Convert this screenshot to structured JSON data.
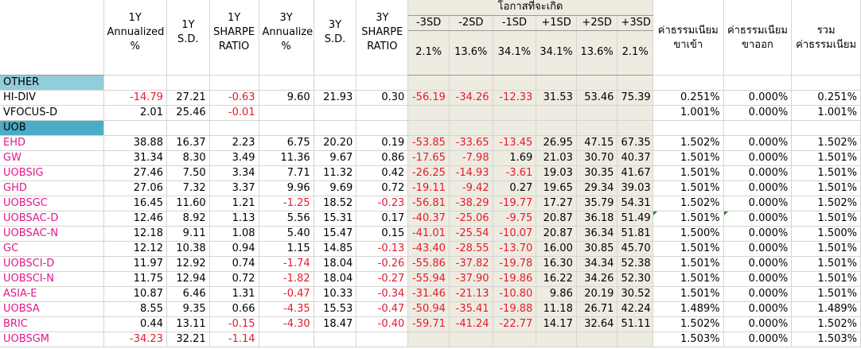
{
  "header": {
    "c1y_ann": [
      "1Y",
      "Annualized",
      "%"
    ],
    "c1y_sd": [
      "1Y",
      "S.D."
    ],
    "c1y_sharpe": [
      "1Y",
      "SHARPE",
      "RATIO"
    ],
    "c3y_ann": [
      "3Y",
      "Annualized",
      "%"
    ],
    "c3y_sd": [
      "3Y",
      "S.D."
    ],
    "c3y_sharpe": [
      "3Y",
      "SHARPE",
      "RATIO"
    ],
    "prob_title": "โอกาสที่จะเกิด",
    "sd_labels": [
      "-3SD",
      "-2SD",
      "-1SD",
      "+1SD",
      "+2SD",
      "+3SD"
    ],
    "sd_probs": [
      "2.1%",
      "13.6%",
      "34.1%",
      "34.1%",
      "13.6%",
      "2.1%"
    ],
    "fee_in": [
      "ค่าธรรมเนียม",
      "ขาเข้า"
    ],
    "fee_out": [
      "ค่าธรรมเนียม",
      "ขาออก"
    ],
    "fee_total": [
      "รวม",
      "ค่าธรรมเนียม"
    ]
  },
  "sections": [
    {
      "name": "OTHER",
      "style": "light",
      "rows": [
        [
          "HI-DIV",
          "-14.79",
          "27.21",
          "-0.63",
          "9.60",
          "21.93",
          "0.30",
          "-56.19",
          "-34.26",
          "-12.33",
          "31.53",
          "53.46",
          "75.39",
          "0.251%",
          "0.000%",
          "0.251%"
        ],
        [
          "VFOCUS-D",
          "2.01",
          "25.46",
          "-0.01",
          "",
          "",
          "",
          "",
          "",
          "",
          "",
          "",
          "",
          "1.001%",
          "0.000%",
          "1.001%"
        ]
      ]
    },
    {
      "name": "UOB",
      "style": "dark",
      "rows": [
        [
          "EHD",
          "38.88",
          "16.37",
          "2.23",
          "6.75",
          "20.20",
          "0.19",
          "-53.85",
          "-33.65",
          "-13.45",
          "26.95",
          "47.15",
          "67.35",
          "1.502%",
          "0.000%",
          "1.502%"
        ],
        [
          "GW",
          "31.34",
          "8.30",
          "3.49",
          "11.36",
          "9.67",
          "0.86",
          "-17.65",
          "-7.98",
          "1.69",
          "21.03",
          "30.70",
          "40.37",
          "1.501%",
          "0.000%",
          "1.501%"
        ],
        [
          "UOBSIG",
          "27.46",
          "7.50",
          "3.34",
          "7.71",
          "11.32",
          "0.42",
          "-26.25",
          "-14.93",
          "-3.61",
          "19.03",
          "30.35",
          "41.67",
          "1.501%",
          "0.000%",
          "1.501%"
        ],
        [
          "GHD",
          "27.06",
          "7.32",
          "3.37",
          "9.96",
          "9.69",
          "0.72",
          "-19.11",
          "-9.42",
          "0.27",
          "19.65",
          "29.34",
          "39.03",
          "1.501%",
          "0.000%",
          "1.501%"
        ],
        [
          "UOBSGC",
          "16.45",
          "11.60",
          "1.21",
          "-1.25",
          "18.52",
          "-0.23",
          "-56.81",
          "-38.29",
          "-19.77",
          "17.27",
          "35.79",
          "54.31",
          "1.502%",
          "0.000%",
          "1.502%"
        ],
        [
          "UOBSAC-D",
          "12.46",
          "8.92",
          "1.13",
          "5.56",
          "15.31",
          "0.17",
          "-40.37",
          "-25.06",
          "-9.75",
          "20.87",
          "36.18",
          "51.49",
          "1.501%",
          "0.000%",
          "1.501%"
        ],
        [
          "UOBSAC-N",
          "12.18",
          "9.11",
          "1.08",
          "5.40",
          "15.47",
          "0.15",
          "-41.01",
          "-25.54",
          "-10.07",
          "20.87",
          "36.34",
          "51.81",
          "1.500%",
          "0.000%",
          "1.500%"
        ],
        [
          "GC",
          "12.12",
          "10.38",
          "0.94",
          "1.15",
          "14.85",
          "-0.13",
          "-43.40",
          "-28.55",
          "-13.70",
          "16.00",
          "30.85",
          "45.70",
          "1.501%",
          "0.000%",
          "1.501%"
        ],
        [
          "UOBSCI-D",
          "11.97",
          "12.92",
          "0.74",
          "-1.74",
          "18.04",
          "-0.26",
          "-55.86",
          "-37.82",
          "-19.78",
          "16.30",
          "34.34",
          "52.38",
          "1.501%",
          "0.000%",
          "1.501%"
        ],
        [
          "UOBSCI-N",
          "11.75",
          "12.94",
          "0.72",
          "-1.82",
          "18.04",
          "-0.27",
          "-55.94",
          "-37.90",
          "-19.86",
          "16.22",
          "34.26",
          "52.30",
          "1.501%",
          "0.000%",
          "1.501%"
        ],
        [
          "ASIA-E",
          "10.87",
          "6.46",
          "1.31",
          "-0.47",
          "10.33",
          "-0.34",
          "-31.46",
          "-21.13",
          "-10.80",
          "9.86",
          "20.19",
          "30.52",
          "1.501%",
          "0.000%",
          "1.501%"
        ],
        [
          "UOBSA",
          "8.55",
          "9.35",
          "0.66",
          "-4.35",
          "15.53",
          "-0.47",
          "-50.94",
          "-35.41",
          "-19.88",
          "11.18",
          "26.71",
          "42.24",
          "1.489%",
          "0.000%",
          "1.489%"
        ],
        [
          "BRIC",
          "0.44",
          "13.11",
          "-0.15",
          "-4.30",
          "18.47",
          "-0.40",
          "-59.71",
          "-41.24",
          "-22.77",
          "14.17",
          "32.64",
          "51.11",
          "1.502%",
          "0.000%",
          "1.502%"
        ],
        [
          "UOBSGM",
          "-34.23",
          "32.21",
          "-1.14",
          "",
          "",
          "",
          "",
          "",
          "",
          "",
          "",
          "",
          "1.503%",
          "0.000%",
          "1.503%"
        ]
      ]
    }
  ]
}
